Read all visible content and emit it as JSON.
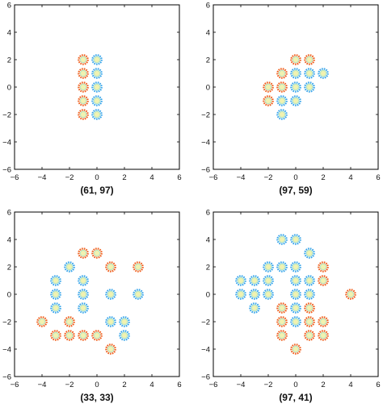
{
  "colors": {
    "orange": "#f0601e",
    "blue": "#3aa6ea",
    "center": "#f2f2b0",
    "inner_green": "#bde8c0",
    "axis": "#000000"
  },
  "chart_data": [
    {
      "type": "scatter",
      "caption": "(61, 97)",
      "xlim": [
        -6,
        6
      ],
      "ylim": [
        -6,
        6
      ],
      "xticks": [
        -6,
        -4,
        -2,
        0,
        2,
        4,
        6
      ],
      "yticks": [
        -6,
        -4,
        -2,
        0,
        2,
        4,
        6
      ],
      "grid": false,
      "series": [
        {
          "color": "orange",
          "points": [
            [
              -1,
              2
            ],
            [
              -1,
              1
            ],
            [
              -1,
              0
            ],
            [
              -1,
              -1
            ],
            [
              -1,
              -2
            ]
          ]
        },
        {
          "color": "blue",
          "points": [
            [
              0,
              2
            ],
            [
              0,
              1
            ],
            [
              0,
              0
            ],
            [
              0,
              -1
            ],
            [
              0,
              -2
            ]
          ]
        }
      ]
    },
    {
      "type": "scatter",
      "caption": "(97, 59)",
      "xlim": [
        -6,
        6
      ],
      "ylim": [
        -6,
        6
      ],
      "xticks": [
        -6,
        -4,
        -2,
        0,
        2,
        4,
        6
      ],
      "yticks": [
        -6,
        -4,
        -2,
        0,
        2,
        4,
        6
      ],
      "grid": false,
      "series": [
        {
          "color": "orange",
          "points": [
            [
              0,
              2
            ],
            [
              1,
              2
            ],
            [
              -1,
              1
            ],
            [
              -2,
              0
            ],
            [
              -1,
              0
            ],
            [
              -2,
              -1
            ]
          ]
        },
        {
          "color": "blue",
          "points": [
            [
              0,
              1
            ],
            [
              1,
              1
            ],
            [
              2,
              1
            ],
            [
              0,
              0
            ],
            [
              1,
              0
            ],
            [
              -1,
              -1
            ],
            [
              0,
              -1
            ],
            [
              -1,
              -2
            ]
          ]
        }
      ]
    },
    {
      "type": "scatter",
      "caption": "(33, 33)",
      "xlim": [
        -6,
        6
      ],
      "ylim": [
        -6,
        6
      ],
      "xticks": [
        -6,
        -4,
        -2,
        0,
        2,
        4,
        6
      ],
      "yticks": [
        -6,
        -4,
        -2,
        0,
        2,
        4,
        6
      ],
      "grid": false,
      "series": [
        {
          "color": "orange",
          "points": [
            [
              -1,
              3
            ],
            [
              0,
              3
            ],
            [
              1,
              2
            ],
            [
              3,
              2
            ],
            [
              -4,
              -2
            ],
            [
              -2,
              -2
            ],
            [
              -3,
              -3
            ],
            [
              -2,
              -3
            ],
            [
              -1,
              -3
            ],
            [
              0,
              -3
            ],
            [
              1,
              -4
            ]
          ]
        },
        {
          "color": "blue",
          "points": [
            [
              -2,
              2
            ],
            [
              -3,
              1
            ],
            [
              -1,
              1
            ],
            [
              -3,
              0
            ],
            [
              -1,
              0
            ],
            [
              1,
              0
            ],
            [
              3,
              0
            ],
            [
              -3,
              -1
            ],
            [
              -1,
              -1
            ],
            [
              1,
              -2
            ],
            [
              2,
              -2
            ],
            [
              2,
              -3
            ]
          ]
        }
      ]
    },
    {
      "type": "scatter",
      "caption": "(97, 41)",
      "xlim": [
        -6,
        6
      ],
      "ylim": [
        -6,
        6
      ],
      "xticks": [
        -6,
        -4,
        -2,
        0,
        2,
        4,
        6
      ],
      "yticks": [
        -6,
        -4,
        -2,
        0,
        2,
        4,
        6
      ],
      "grid": false,
      "series": [
        {
          "color": "orange",
          "points": [
            [
              2,
              2
            ],
            [
              2,
              1
            ],
            [
              4,
              0
            ],
            [
              -1,
              -1
            ],
            [
              1,
              -1
            ],
            [
              -1,
              -2
            ],
            [
              1,
              -2
            ],
            [
              2,
              -2
            ],
            [
              -1,
              -3
            ],
            [
              1,
              -3
            ],
            [
              2,
              -3
            ],
            [
              0,
              -4
            ]
          ]
        },
        {
          "color": "blue",
          "points": [
            [
              -1,
              4
            ],
            [
              0,
              4
            ],
            [
              1,
              3
            ],
            [
              -2,
              2
            ],
            [
              -1,
              2
            ],
            [
              0,
              2
            ],
            [
              -4,
              1
            ],
            [
              -3,
              1
            ],
            [
              -2,
              1
            ],
            [
              0,
              1
            ],
            [
              1,
              1
            ],
            [
              -4,
              0
            ],
            [
              -3,
              0
            ],
            [
              -2,
              0
            ],
            [
              0,
              0
            ],
            [
              1,
              0
            ],
            [
              -3,
              -1
            ],
            [
              0,
              -1
            ],
            [
              0,
              -2
            ]
          ]
        }
      ]
    }
  ]
}
